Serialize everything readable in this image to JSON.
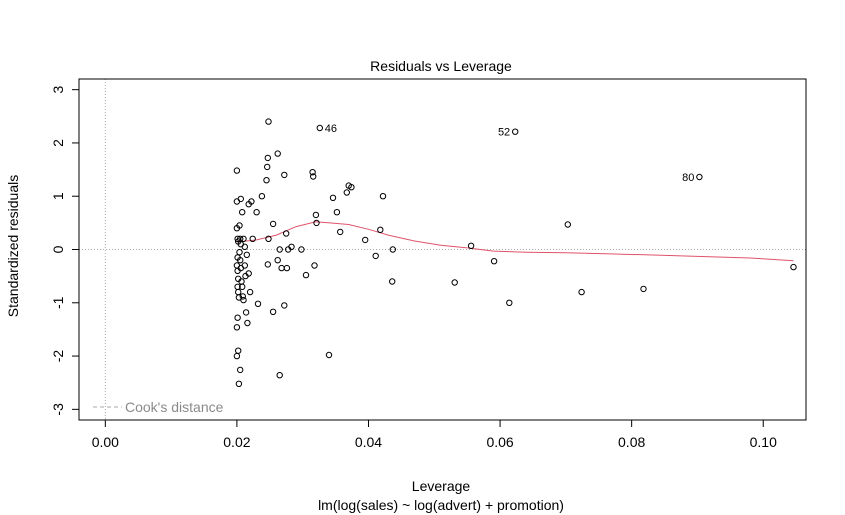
{
  "chart_data": {
    "type": "scatter",
    "title": "Residuals vs Leverage",
    "xlabel": "Leverage",
    "subtitle": "lm(log(sales) ~ log(advert) + promotion)",
    "ylabel": "Standardized residuals",
    "xlim": [
      -0.004,
      0.1065
    ],
    "ylim": [
      -3.2,
      3.2
    ],
    "x_ticks": [
      0,
      0.02,
      0.04,
      0.06,
      0.08,
      0.1
    ],
    "x_tick_labels": [
      "0.00",
      "0.02",
      "0.04",
      "0.06",
      "0.08",
      "0.10"
    ],
    "y_ticks": [
      -3,
      -2,
      -1,
      0,
      1,
      2,
      3
    ],
    "y_tick_labels": [
      "-3",
      "-2",
      "-1",
      "0",
      "1",
      "2",
      "3"
    ],
    "grid": false,
    "reference_lines": {
      "horizontal_y": 0,
      "vertical_x": 0
    },
    "legend": {
      "label": "Cook's distance",
      "position": "bottom-left"
    },
    "colors": {
      "points": "#000000",
      "smoother": "#df536b",
      "reference": "#aaaaaa",
      "legend_text": "#8a8a8a"
    },
    "labeled_points": [
      {
        "label": "46",
        "x": 0.0326,
        "y": 2.28
      },
      {
        "label": "52",
        "x": 0.0623,
        "y": 2.21
      },
      {
        "label": "80",
        "x": 0.0903,
        "y": 1.36
      }
    ],
    "points": [
      [
        0.02,
        1.48
      ],
      [
        0.02,
        0.9
      ],
      [
        0.02,
        0.4
      ],
      [
        0.0201,
        0.2
      ],
      [
        0.0202,
        0.15
      ],
      [
        0.0201,
        -0.15
      ],
      [
        0.02,
        -0.3
      ],
      [
        0.0201,
        -0.4
      ],
      [
        0.0202,
        -0.55
      ],
      [
        0.0201,
        -0.7
      ],
      [
        0.0202,
        -0.8
      ],
      [
        0.0203,
        -0.9
      ],
      [
        0.0201,
        -1.28
      ],
      [
        0.02,
        -1.46
      ],
      [
        0.0202,
        -1.9
      ],
      [
        0.02,
        -2.0
      ],
      [
        0.0203,
        -2.52
      ],
      [
        0.0205,
        -2.26
      ],
      [
        0.0204,
        0.45
      ],
      [
        0.0205,
        0.2
      ],
      [
        0.0206,
        0.1
      ],
      [
        0.0204,
        -0.05
      ],
      [
        0.0205,
        -0.2
      ],
      [
        0.0206,
        -0.35
      ],
      [
        0.0207,
        -0.6
      ],
      [
        0.0208,
        -0.7
      ],
      [
        0.0209,
        -0.88
      ],
      [
        0.021,
        -0.95
      ],
      [
        0.0206,
        0.95
      ],
      [
        0.0208,
        0.7
      ],
      [
        0.021,
        0.2
      ],
      [
        0.0212,
        -0.3
      ],
      [
        0.0213,
        -0.5
      ],
      [
        0.0214,
        -1.18
      ],
      [
        0.0216,
        -1.38
      ],
      [
        0.0212,
        0.05
      ],
      [
        0.0215,
        -0.1
      ],
      [
        0.0218,
        0.85
      ],
      [
        0.0218,
        -0.45
      ],
      [
        0.022,
        -0.8
      ],
      [
        0.0222,
        0.9
      ],
      [
        0.0224,
        0.2
      ],
      [
        0.023,
        0.7
      ],
      [
        0.0232,
        -1.02
      ],
      [
        0.0238,
        1.0
      ],
      [
        0.0245,
        1.3
      ],
      [
        0.0246,
        1.55
      ],
      [
        0.0247,
        1.72
      ],
      [
        0.0248,
        2.4
      ],
      [
        0.0247,
        -0.28
      ],
      [
        0.0248,
        0.2
      ],
      [
        0.0255,
        0.48
      ],
      [
        0.0255,
        -1.17
      ],
      [
        0.0262,
        1.8
      ],
      [
        0.0262,
        -0.2
      ],
      [
        0.0265,
        0.0
      ],
      [
        0.0265,
        -2.36
      ],
      [
        0.0268,
        -0.35
      ],
      [
        0.0272,
        1.4
      ],
      [
        0.0272,
        -1.05
      ],
      [
        0.0275,
        0.3
      ],
      [
        0.0276,
        -0.35
      ],
      [
        0.0278,
        0.0
      ],
      [
        0.0283,
        0.05
      ],
      [
        0.0298,
        0.0
      ],
      [
        0.0305,
        -0.48
      ],
      [
        0.0315,
        1.45
      ],
      [
        0.0316,
        1.37
      ],
      [
        0.0318,
        -0.3
      ],
      [
        0.032,
        0.65
      ],
      [
        0.0321,
        0.5
      ],
      [
        0.034,
        -1.98
      ],
      [
        0.0346,
        0.97
      ],
      [
        0.0352,
        0.7
      ],
      [
        0.0357,
        0.33
      ],
      [
        0.0367,
        1.07
      ],
      [
        0.037,
        1.2
      ],
      [
        0.0374,
        1.17
      ],
      [
        0.0395,
        0.18
      ],
      [
        0.0411,
        -0.12
      ],
      [
        0.0418,
        0.37
      ],
      [
        0.0422,
        1.0
      ],
      [
        0.0436,
        -0.6
      ],
      [
        0.0437,
        0.0
      ],
      [
        0.0531,
        -0.62
      ],
      [
        0.0556,
        0.07
      ],
      [
        0.0591,
        -0.22
      ],
      [
        0.0614,
        -1.0
      ],
      [
        0.0703,
        0.47
      ],
      [
        0.0724,
        -0.8
      ],
      [
        0.0818,
        -0.74
      ],
      [
        0.1046,
        -0.33
      ]
    ],
    "smoother": [
      [
        0.02,
        0.14
      ],
      [
        0.023,
        0.18
      ],
      [
        0.026,
        0.27
      ],
      [
        0.029,
        0.43
      ],
      [
        0.032,
        0.52
      ],
      [
        0.035,
        0.49
      ],
      [
        0.037,
        0.47
      ],
      [
        0.04,
        0.38
      ],
      [
        0.043,
        0.27
      ],
      [
        0.047,
        0.16
      ],
      [
        0.051,
        0.08
      ],
      [
        0.055,
        0.03
      ],
      [
        0.059,
        -0.03
      ],
      [
        0.064,
        -0.05
      ],
      [
        0.07,
        -0.06
      ],
      [
        0.076,
        -0.08
      ],
      [
        0.082,
        -0.1
      ],
      [
        0.09,
        -0.13
      ],
      [
        0.098,
        -0.16
      ],
      [
        0.1046,
        -0.21
      ]
    ]
  }
}
